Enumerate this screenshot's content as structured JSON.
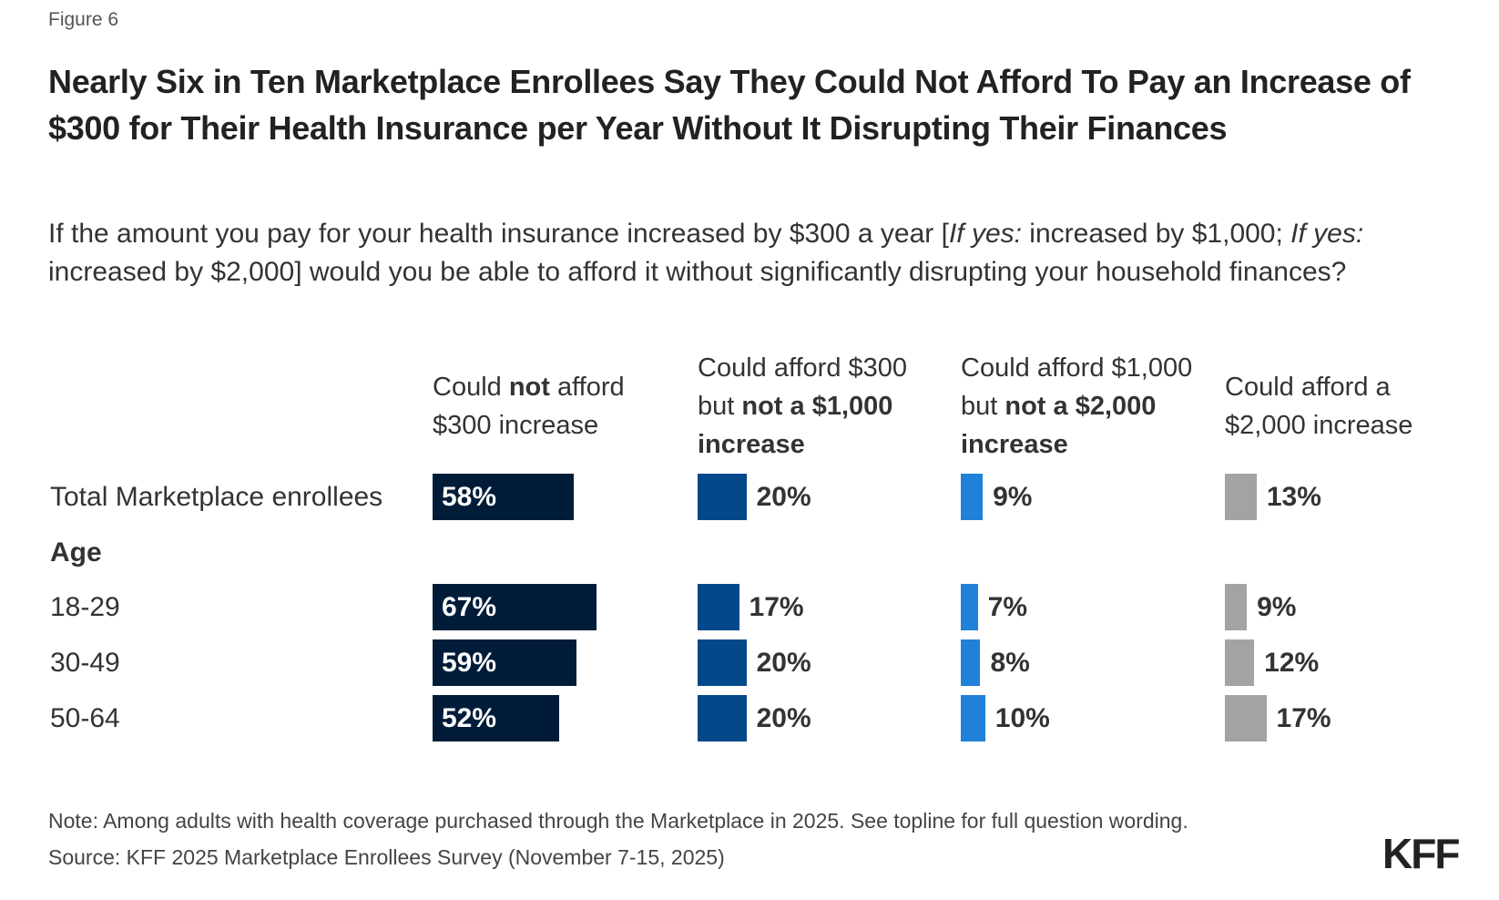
{
  "figure_label": "Figure 6",
  "chart_data": {
    "type": "bar",
    "title": "Nearly Six in Ten Marketplace Enrollees Say They Could Not Afford To Pay an Increase of $300 for Their Health Insurance per Year Without It Disrupting Their Finances",
    "subtitle_parts": [
      "If the amount you pay for your health insurance increased by $300 a year [",
      "If yes:",
      " increased by $1,000; ",
      "If yes:",
      " increased by $2,000] would you be able to afford it without significantly disrupting your household finances?"
    ],
    "series": [
      {
        "name": "Could not afford $300 increase",
        "header_parts": [
          "Could ",
          "not",
          " afford $300 increase"
        ],
        "color": "#001c38",
        "values": [
          58,
          67,
          59,
          52
        ]
      },
      {
        "name": "Could afford $300 but not a $1,000 increase",
        "header_parts": [
          "Could afford $300 but ",
          "not a $1,000 increase",
          ""
        ],
        "color": "#03498a",
        "values": [
          20,
          17,
          20,
          20
        ]
      },
      {
        "name": "Could afford $1,000 but not a $2,000 increase",
        "header_parts": [
          "Could afford $1,000 but ",
          "not a $2,000 increase",
          ""
        ],
        "color": "#1f81d8",
        "values": [
          9,
          7,
          8,
          10
        ]
      },
      {
        "name": "Could afford a $2,000 increase",
        "header_parts": [
          "Could afford a $2,000 increase",
          "",
          ""
        ],
        "color": "#a3a3a3",
        "values": [
          13,
          9,
          12,
          17
        ]
      }
    ],
    "categories": [
      "Total Marketplace enrollees",
      "18-29",
      "30-49",
      "50-64"
    ],
    "group_label": "Age",
    "value_suffix": "%"
  },
  "note": "Note: Among adults with health coverage purchased through the Marketplace in 2025. See topline for full question wording.",
  "source": "Source: KFF 2025 Marketplace Enrollees Survey (November 7-15, 2025)",
  "logo": "KFF"
}
